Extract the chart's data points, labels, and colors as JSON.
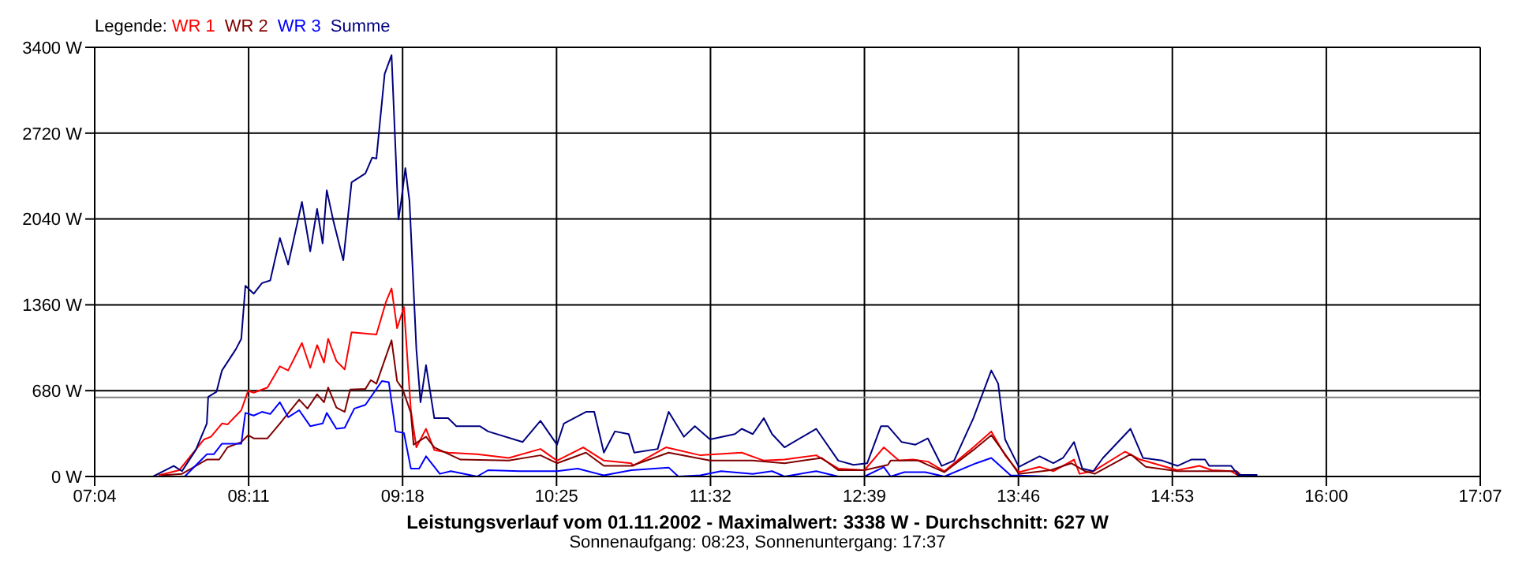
{
  "chart_data": {
    "type": "line",
    "title": "Leistungsverlauf vom 01.11.2002 - Maximalwert: 3338 W - Durchschnitt: 627 W",
    "subtitle": "Sonnenaufgang: 08:23, Sonnenuntergang: 17:37",
    "legend_title": "Legende:",
    "legend": "top left",
    "grid": true,
    "xlim": [
      7.0667,
      17.1167
    ],
    "xticks": [
      {
        "value": 7.0667,
        "label": "07:04"
      },
      {
        "value": 8.1833,
        "label": "08:11"
      },
      {
        "value": 9.3,
        "label": "09:18"
      },
      {
        "value": 10.4167,
        "label": "10:25"
      },
      {
        "value": 11.5333,
        "label": "11:32"
      },
      {
        "value": 12.65,
        "label": "12:39"
      },
      {
        "value": 13.7667,
        "label": "13:46"
      },
      {
        "value": 14.8833,
        "label": "14:53"
      },
      {
        "value": 16,
        "label": "16:00"
      },
      {
        "value": 17.1167,
        "label": "17:07"
      }
    ],
    "ylim": [
      0,
      3400
    ],
    "yticks": [
      {
        "value": 0,
        "label": "0 W"
      },
      {
        "value": 680,
        "label": "680 W"
      },
      {
        "value": 1360,
        "label": "1360 W"
      },
      {
        "value": 2040,
        "label": "2040 W"
      },
      {
        "value": 2720,
        "label": "2720 W"
      },
      {
        "value": 3400,
        "label": "3400 W"
      }
    ],
    "ref_lines": [
      {
        "axis": "y",
        "value": 627,
        "color": "#808080"
      }
    ],
    "series": [
      {
        "name": "WR 1",
        "color": "#ff0000",
        "x": [
          7.53,
          7.68,
          7.86,
          7.91,
          7.99,
          8.03,
          8.13,
          8.18,
          8.22,
          8.32,
          8.41,
          8.47,
          8.57,
          8.63,
          8.68,
          8.73,
          8.76,
          8.82,
          8.88,
          8.93,
          9.11,
          9.18,
          9.22,
          9.26,
          9.31,
          9.36,
          9.4,
          9.47,
          9.53,
          9.63,
          9.84,
          10.07,
          10.3,
          10.42,
          10.61,
          10.76,
          10.96,
          10.97,
          11.21,
          11.46,
          11.76,
          11.92,
          12.07,
          12.3,
          12.46,
          12.65,
          12.79,
          12.9,
          13.0,
          13.11,
          13.23,
          13.44,
          13.57,
          13.67,
          13.77,
          13.92,
          14.02,
          14.17,
          14.21,
          14.31,
          14.54,
          14.65,
          14.92,
          15.08,
          15.17,
          15.31,
          15.36
        ],
        "values": [
          9,
          50,
          294,
          315,
          420,
          412,
          525,
          680,
          664,
          705,
          873,
          840,
          1058,
          861,
          1041,
          903,
          1091,
          915,
          848,
          1142,
          1125,
          1385,
          1490,
          1175,
          1343,
          525,
          231,
          378,
          210,
          189,
          176,
          147,
          218,
          126,
          231,
          126,
          105,
          84,
          231,
          168,
          189,
          126,
          134,
          168,
          63,
          50,
          231,
          126,
          134,
          118,
          42,
          231,
          357,
          168,
          34,
          76,
          42,
          134,
          21,
          42,
          197,
          134,
          50,
          84,
          50,
          42,
          9
        ]
      },
      {
        "name": "WR 2",
        "color": "#800000",
        "x": [
          7.55,
          7.7,
          7.88,
          7.97,
          8.03,
          8.13,
          8.18,
          8.22,
          8.32,
          8.41,
          8.55,
          8.61,
          8.68,
          8.73,
          8.76,
          8.82,
          8.88,
          8.92,
          9.03,
          9.07,
          9.11,
          9.22,
          9.26,
          9.3,
          9.36,
          9.38,
          9.47,
          9.53,
          9.72,
          10.07,
          10.3,
          10.42,
          10.63,
          10.76,
          10.96,
          11.23,
          11.53,
          11.84,
          12.07,
          12.34,
          12.46,
          12.65,
          12.82,
          12.84,
          13.04,
          13.23,
          13.44,
          13.57,
          13.69,
          13.77,
          14.0,
          14.15,
          14.25,
          14.32,
          14.58,
          14.69,
          14.92,
          15.35,
          15.38
        ],
        "values": [
          9,
          21,
          134,
          134,
          231,
          273,
          327,
          302,
          302,
          420,
          609,
          538,
          651,
          588,
          705,
          546,
          512,
          689,
          693,
          764,
          735,
          1079,
          756,
          693,
          504,
          252,
          315,
          231,
          134,
          126,
          168,
          105,
          189,
          84,
          84,
          189,
          126,
          126,
          105,
          147,
          50,
          50,
          92,
          126,
          126,
          34,
          210,
          327,
          147,
          21,
          50,
          105,
          42,
          21,
          176,
          76,
          42,
          42,
          9
        ]
      },
      {
        "name": "WR 3",
        "color": "#0000ff",
        "x": [
          7.72,
          7.88,
          7.93,
          7.99,
          8.13,
          8.16,
          8.22,
          8.28,
          8.34,
          8.41,
          8.47,
          8.55,
          8.63,
          8.72,
          8.75,
          8.82,
          8.88,
          8.95,
          9.03,
          9.15,
          9.2,
          9.25,
          9.31,
          9.36,
          9.42,
          9.47,
          9.57,
          9.65,
          9.84,
          9.92,
          10.15,
          10.42,
          10.57,
          10.76,
          10.96,
          11.23,
          11.3,
          11.46,
          11.61,
          11.84,
          11.98,
          12.07,
          12.3,
          12.46,
          12.65,
          12.77,
          12.79,
          12.84,
          12.94,
          13.09,
          13.23,
          13.46,
          13.57,
          13.71,
          14.0,
          14.5,
          15.38
        ],
        "values": [
          0,
          176,
          176,
          260,
          260,
          504,
          483,
          512,
          495,
          588,
          470,
          525,
          399,
          420,
          504,
          378,
          386,
          538,
          567,
          756,
          747,
          357,
          344,
          63,
          63,
          160,
          21,
          42,
          0,
          50,
          42,
          42,
          63,
          9,
          50,
          71,
          0,
          9,
          42,
          21,
          42,
          0,
          42,
          0,
          0,
          63,
          76,
          0,
          34,
          34,
          0,
          105,
          147,
          9,
          0,
          0,
          0
        ]
      },
      {
        "name": "Summe",
        "color": "#000080",
        "x": [
          7.49,
          7.64,
          7.7,
          7.8,
          7.88,
          7.89,
          7.95,
          7.99,
          8.09,
          8.13,
          8.16,
          8.22,
          8.28,
          8.34,
          8.41,
          8.47,
          8.57,
          8.63,
          8.68,
          8.72,
          8.75,
          8.8,
          8.87,
          8.93,
          9.03,
          9.08,
          9.11,
          9.17,
          9.22,
          9.27,
          9.29,
          9.32,
          9.35,
          9.4,
          9.43,
          9.47,
          9.53,
          9.63,
          9.69,
          9.86,
          9.92,
          10.17,
          10.3,
          10.42,
          10.47,
          10.63,
          10.69,
          10.76,
          10.84,
          10.94,
          10.98,
          11.15,
          11.23,
          11.34,
          11.42,
          11.53,
          11.71,
          11.76,
          11.84,
          11.92,
          11.98,
          12.07,
          12.3,
          12.46,
          12.57,
          12.67,
          12.77,
          12.82,
          12.92,
          13.02,
          13.11,
          13.21,
          13.3,
          13.44,
          13.57,
          13.62,
          13.67,
          13.77,
          13.92,
          14.02,
          14.09,
          14.17,
          14.23,
          14.31,
          14.38,
          14.58,
          14.67,
          14.81,
          14.92,
          15.02,
          15.12,
          15.15,
          15.31,
          15.36,
          15.5
        ],
        "values": [
          0,
          84,
          42,
          210,
          420,
          630,
          671,
          840,
          1007,
          1091,
          1511,
          1448,
          1532,
          1553,
          1889,
          1679,
          2175,
          1784,
          2120,
          1847,
          2267,
          2015,
          1713,
          2330,
          2401,
          2527,
          2519,
          3190,
          3338,
          2036,
          2183,
          2443,
          2183,
          1007,
          588,
          882,
          462,
          462,
          399,
          399,
          357,
          273,
          441,
          252,
          420,
          512,
          512,
          189,
          357,
          336,
          189,
          218,
          512,
          315,
          399,
          294,
          336,
          378,
          336,
          462,
          336,
          231,
          378,
          126,
          92,
          105,
          399,
          399,
          273,
          252,
          302,
          84,
          126,
          462,
          840,
          735,
          294,
          76,
          160,
          105,
          147,
          273,
          63,
          42,
          147,
          378,
          147,
          126,
          84,
          134,
          134,
          84,
          84,
          13,
          13
        ]
      }
    ]
  }
}
